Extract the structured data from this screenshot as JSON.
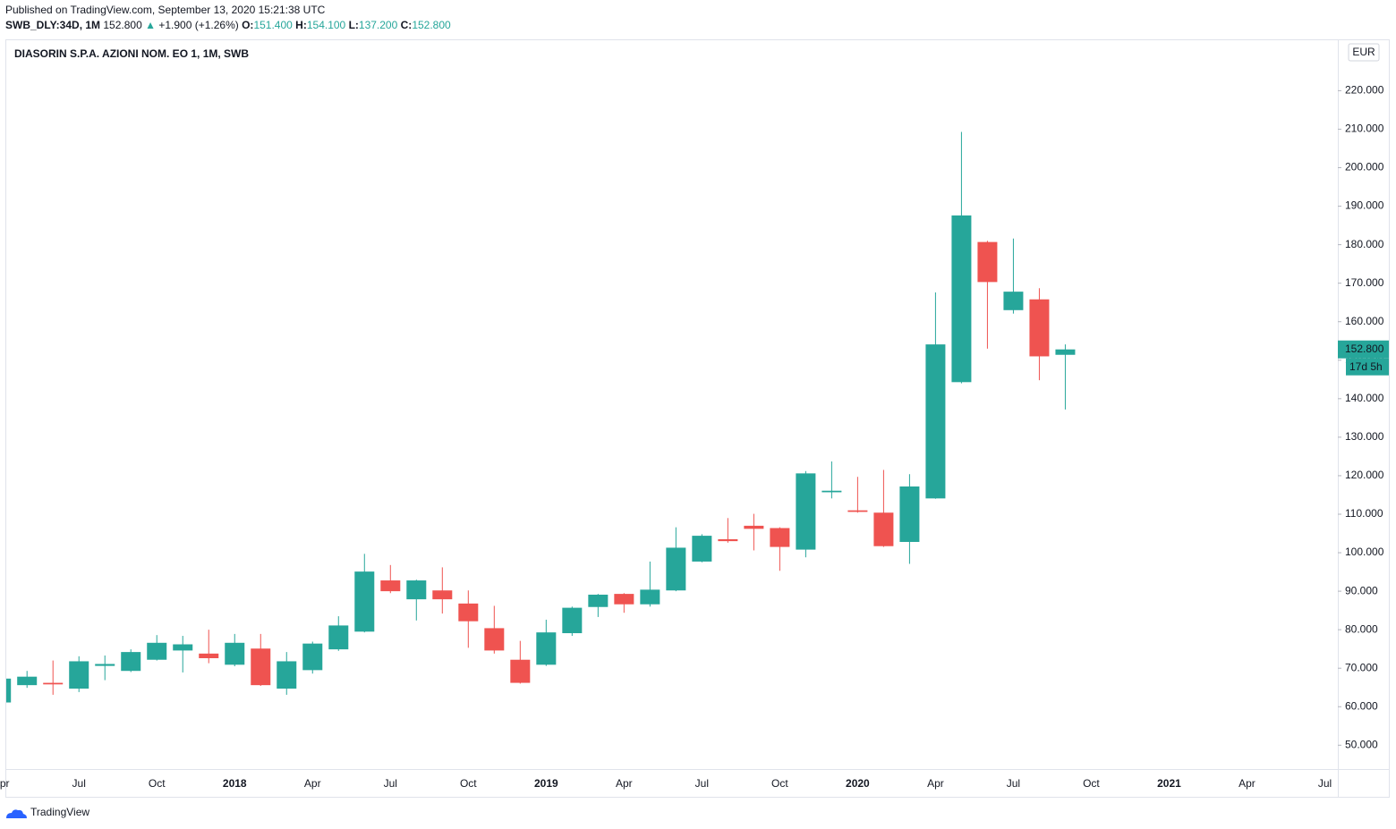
{
  "header": {
    "published": "Published on TradingView.com, September 13, 2020 15:21:38 UTC",
    "symbol": "SWB_DLY:34D, 1M",
    "price": "152.800",
    "arrow": "▲",
    "change": "+1.900 (+1.26%)",
    "o_label": "O:",
    "o": "151.400",
    "h_label": "H:",
    "h": "154.100",
    "l_label": "L:",
    "l": "137.200",
    "c_label": "C:",
    "c": "152.800"
  },
  "chart_data": {
    "type": "candlestick",
    "title": "DIASORIN S.P.A. AZIONI NOM. EO 1, 1M, SWB",
    "currency": "EUR",
    "up_color": "#26a69a",
    "down_color": "#ef5350",
    "grid": true,
    "x": [
      0,
      1,
      2,
      3,
      4,
      5,
      6,
      7,
      8,
      9,
      10,
      11,
      12,
      13,
      14,
      15,
      16,
      17,
      18,
      19,
      20,
      21,
      22,
      23,
      24,
      25,
      26,
      27,
      28,
      29,
      30,
      31,
      32,
      33,
      34,
      35,
      36,
      37,
      38,
      39,
      40,
      41
    ],
    "open": [
      61.1,
      65.6,
      66.2,
      64.7,
      70.6,
      69.3,
      72.2,
      74.6,
      73.8,
      70.9,
      75.1,
      64.7,
      69.5,
      74.9,
      79.5,
      92.8,
      87.9,
      90.2,
      86.8,
      80.4,
      72.2,
      70.9,
      79.1,
      85.9,
      89.3,
      86.6,
      90.2,
      97.7,
      103.5,
      107.0,
      106.4,
      100.8,
      115.7,
      111.0,
      110.4,
      102.8,
      114.1,
      144.3,
      180.7,
      163.0,
      165.8,
      151.4
    ],
    "high": [
      67.5,
      69.3,
      72.0,
      73.1,
      73.3,
      74.9,
      78.6,
      78.4,
      80.0,
      78.9,
      78.9,
      74.2,
      76.9,
      83.5,
      99.7,
      96.8,
      93.0,
      96.2,
      90.2,
      86.2,
      77.1,
      82.6,
      86.0,
      89.3,
      89.5,
      97.7,
      106.6,
      104.8,
      109.0,
      110.1,
      106.6,
      121.2,
      123.7,
      119.7,
      121.5,
      120.4,
      167.6,
      209.3,
      181.0,
      181.6,
      168.7,
      154.1
    ],
    "low": [
      61.0,
      64.9,
      63.1,
      63.8,
      66.9,
      69.0,
      72.0,
      68.9,
      71.3,
      70.5,
      65.4,
      63.1,
      68.6,
      74.5,
      79.3,
      89.5,
      82.4,
      84.2,
      75.3,
      73.8,
      66.0,
      70.6,
      78.4,
      83.3,
      84.4,
      86.0,
      90.0,
      97.5,
      102.6,
      100.6,
      95.3,
      98.8,
      114.1,
      110.4,
      101.5,
      97.1,
      114.0,
      144.0,
      153.0,
      162.1,
      144.8,
      137.2
    ],
    "close": [
      67.3,
      67.8,
      65.8,
      71.8,
      71.1,
      74.2,
      76.6,
      76.2,
      72.6,
      76.6,
      65.6,
      71.8,
      76.4,
      81.1,
      95.1,
      90.0,
      92.8,
      87.9,
      82.2,
      74.6,
      66.2,
      79.3,
      85.7,
      89.1,
      86.6,
      90.4,
      101.3,
      104.4,
      103.0,
      106.2,
      101.5,
      120.6,
      116.1,
      110.6,
      101.7,
      117.2,
      154.1,
      187.6,
      170.3,
      167.8,
      151.0,
      152.8
    ],
    "xlim": [
      0.2,
      51.5
    ],
    "xticks": [
      {
        "value": 0,
        "label": "Apr"
      },
      {
        "value": 3,
        "label": "Jul"
      },
      {
        "value": 6,
        "label": "Oct"
      },
      {
        "value": 9,
        "label": "2018"
      },
      {
        "value": 12,
        "label": "Apr"
      },
      {
        "value": 15,
        "label": "Jul"
      },
      {
        "value": 18,
        "label": "Oct"
      },
      {
        "value": 21,
        "label": "2019"
      },
      {
        "value": 24,
        "label": "Apr"
      },
      {
        "value": 27,
        "label": "Jul"
      },
      {
        "value": 30,
        "label": "Oct"
      },
      {
        "value": 33,
        "label": "2020"
      },
      {
        "value": 36,
        "label": "Apr"
      },
      {
        "value": 39,
        "label": "Jul"
      },
      {
        "value": 42,
        "label": "Oct"
      },
      {
        "value": 45,
        "label": "2021"
      },
      {
        "value": 48,
        "label": "Apr"
      },
      {
        "value": 51,
        "label": "Jul"
      }
    ],
    "ylim": [
      43.8,
      233.1
    ],
    "yticks": [
      {
        "value": 50,
        "label": "50.000"
      },
      {
        "value": 60,
        "label": "60.000"
      },
      {
        "value": 70,
        "label": "70.000"
      },
      {
        "value": 80,
        "label": "80.000"
      },
      {
        "value": 90,
        "label": "90.000"
      },
      {
        "value": 100,
        "label": "100.000"
      },
      {
        "value": 110,
        "label": "110.000"
      },
      {
        "value": 120,
        "label": "120.000"
      },
      {
        "value": 130,
        "label": "130.000"
      },
      {
        "value": 140,
        "label": "140.000"
      },
      {
        "value": 150,
        "label": "150.000"
      },
      {
        "value": 160,
        "label": "160.000"
      },
      {
        "value": 170,
        "label": "170.000"
      },
      {
        "value": 180,
        "label": "180.000"
      },
      {
        "value": 190,
        "label": "190.000"
      },
      {
        "value": 200,
        "label": "200.000"
      },
      {
        "value": 210,
        "label": "210.000"
      },
      {
        "value": 220,
        "label": "220.000"
      }
    ],
    "last_price": {
      "value": 152.8,
      "label": "152.800"
    },
    "countdown": "17d 5h"
  },
  "footer": {
    "brand": "TradingView"
  }
}
